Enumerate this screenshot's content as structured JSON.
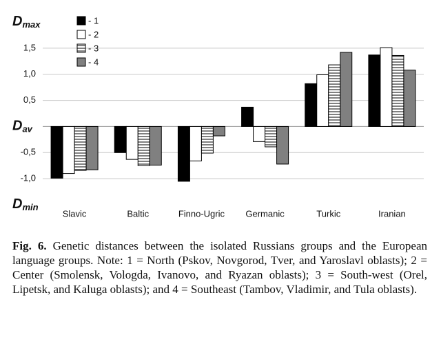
{
  "chart_data": {
    "type": "bar",
    "categories": [
      "Slavic",
      "Baltic",
      "Finno-Ugric",
      "Germanic",
      "Turkic",
      "Iranian"
    ],
    "series": [
      {
        "name": "- 1",
        "color": "#000000",
        "values": [
          -0.99,
          -0.5,
          -1.05,
          0.37,
          0.82,
          1.37
        ]
      },
      {
        "name": "- 2",
        "color": "#ffffff",
        "values": [
          -0.9,
          -0.63,
          -0.66,
          -0.29,
          0.99,
          1.51
        ]
      },
      {
        "name": "- 3",
        "color": "#ffffff",
        "pattern": "stripes",
        "values": [
          -0.84,
          -0.75,
          -0.51,
          -0.39,
          1.18,
          1.36
        ]
      },
      {
        "name": "- 4",
        "color": "#808080",
        "values": [
          -0.83,
          -0.74,
          -0.18,
          -0.72,
          1.42,
          1.08
        ]
      }
    ],
    "ylim": [
      -1.5,
      2.0
    ],
    "yticks": [
      {
        "value": -1.5,
        "label": "D",
        "sub": "min"
      },
      {
        "value": -1,
        "label": "-1,0"
      },
      {
        "value": -0.5,
        "label": "-0,5"
      },
      {
        "value": 0,
        "label": "D",
        "sub": "av"
      },
      {
        "value": 0.5,
        "label": "0,5"
      },
      {
        "value": 1,
        "label": "1,0"
      },
      {
        "value": 1.5,
        "label": "1,5"
      },
      {
        "value": 2,
        "label": "D",
        "sub": "max"
      }
    ],
    "grid": true,
    "legend": "top-left",
    "caption": {
      "label": "Fig. 6.",
      "text": "Genetic distances between the isolated Russians groups and the European language groups. Note: 1 = North (Pskov, Novgorod, Tver, and Yaroslavl oblasts); 2 = Center (Smolensk, Vologda, Ivanovo, and Ryazan oblasts); 3 = South-west (Orel, Lipetsk, and Kaluga oblasts); and 4 = Southeast (Tambov, Vladimir, and Tula oblasts)."
    }
  }
}
